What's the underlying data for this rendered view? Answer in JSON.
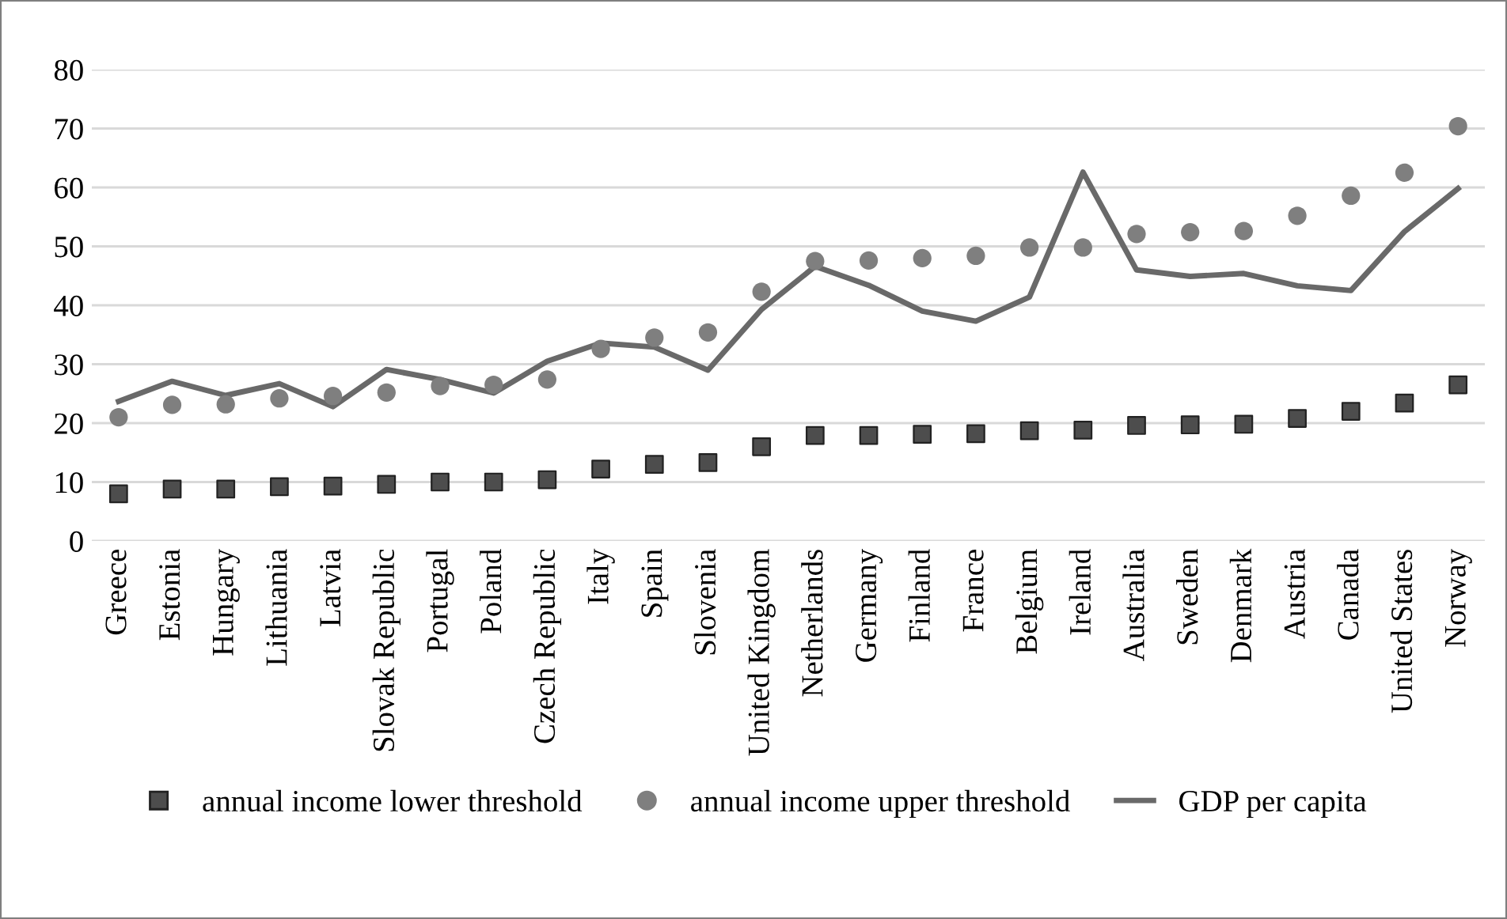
{
  "chart_data": {
    "type": "scatter",
    "categories": [
      "Greece",
      "Estonia",
      "Hungary",
      "Lithuania",
      "Latvia",
      "Slovak Republic",
      "Portugal",
      "Poland",
      "Czech Republic",
      "Italy",
      "Spain",
      "Slovenia",
      "United Kingdom",
      "Netherlands",
      "Germany",
      "Finland",
      "France",
      "Belgium",
      "Ireland",
      "Australia",
      "Sweden",
      "Denmark",
      "Austria",
      "Canada",
      "United States",
      "Norway"
    ],
    "series": [
      {
        "name": "annual income lower threshold",
        "marker": "square",
        "color": "#4d4d4d",
        "values": [
          8,
          8.8,
          8.8,
          9.2,
          9.3,
          9.6,
          10,
          10,
          10.4,
          12.2,
          13,
          13.3,
          16,
          17.9,
          17.9,
          18.1,
          18.2,
          18.7,
          18.8,
          19.6,
          19.7,
          19.8,
          20.8,
          22,
          23.4,
          26.5
        ]
      },
      {
        "name": "annual income upper threshold",
        "marker": "circle",
        "color": "#7f7f7f",
        "values": [
          21,
          23.1,
          23.2,
          24.2,
          24.6,
          25.2,
          26.3,
          26.5,
          27.4,
          32.6,
          34.5,
          35.4,
          42.3,
          47.5,
          47.6,
          48,
          48.4,
          49.8,
          49.8,
          52.1,
          52.4,
          52.6,
          55.2,
          58.6,
          62.5,
          70.4
        ]
      },
      {
        "name": "GDP per capita",
        "type": "line",
        "marker": "none",
        "color": "#696969",
        "values": [
          23.7,
          27.1,
          24.7,
          26.7,
          22.8,
          29.1,
          27.4,
          25.1,
          30.5,
          33.6,
          32.9,
          29,
          39.3,
          46.6,
          43.4,
          39,
          37.3,
          41.4,
          62.6,
          46,
          44.9,
          45.4,
          43.3,
          42.5,
          52.5,
          59.8
        ]
      }
    ],
    "ylim": [
      0,
      80
    ],
    "yticks": [
      0,
      10,
      20,
      30,
      40,
      50,
      60,
      70,
      80
    ],
    "grid": "y",
    "legend": "bottom"
  }
}
